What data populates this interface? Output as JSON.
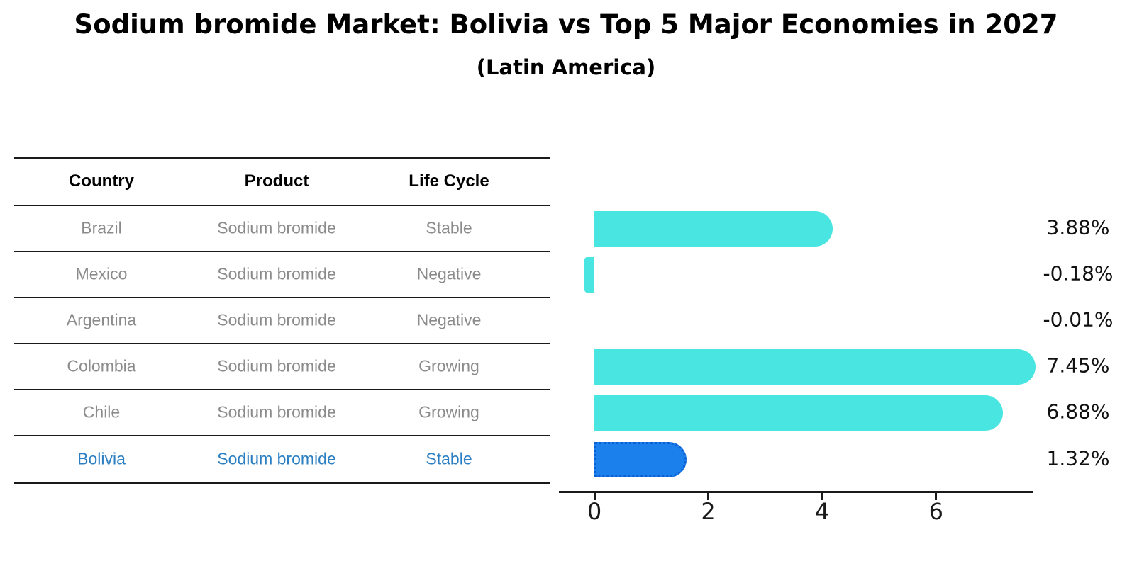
{
  "title": "Sodium bromide Market: Bolivia vs Top 5 Major Economies in 2027",
  "subtitle": "(Latin America)",
  "table": {
    "headers": [
      "Country",
      "Product",
      "Life Cycle"
    ],
    "rows": [
      {
        "country": "Brazil",
        "product": "Sodium bromide",
        "life_cycle": "Stable",
        "highlight": false
      },
      {
        "country": "Mexico",
        "product": "Sodium bromide",
        "life_cycle": "Negative",
        "highlight": false
      },
      {
        "country": "Argentina",
        "product": "Sodium bromide",
        "life_cycle": "Negative",
        "highlight": false
      },
      {
        "country": "Colombia",
        "product": "Sodium bromide",
        "life_cycle": "Growing",
        "highlight": false
      },
      {
        "country": "Chile",
        "product": "Sodium bromide",
        "life_cycle": "Growing",
        "highlight": false
      },
      {
        "country": "Bolivia",
        "product": "Sodium bromide",
        "life_cycle": "Stable",
        "highlight": true
      }
    ]
  },
  "chart_data": {
    "type": "bar",
    "orientation": "horizontal",
    "title": "Sodium bromide Market: Bolivia vs Top 5 Major Economies in 2027 (Latin America)",
    "categories": [
      "Brazil",
      "Mexico",
      "Argentina",
      "Colombia",
      "Chile",
      "Bolivia"
    ],
    "values": [
      3.88,
      -0.18,
      -0.01,
      7.45,
      6.88,
      1.32
    ],
    "value_labels": [
      "3.88%",
      "-0.18%",
      "-0.01%",
      "7.45%",
      "6.88%",
      "1.32%"
    ],
    "x_ticks": [
      0,
      2,
      4,
      6
    ],
    "xlim": [
      -0.65,
      7.7
    ],
    "xlabel": "",
    "ylabel": "",
    "grid": false,
    "legend": "none",
    "highlight_category": "Bolivia"
  },
  "colors": {
    "bar": "#48e5e1",
    "highlight_bar": "#1b80ec",
    "highlight_border": "#0c5ed2",
    "highlight_text": "#2a7ec2",
    "body_text": "#8b8b8b",
    "heading_text": "#000000"
  }
}
